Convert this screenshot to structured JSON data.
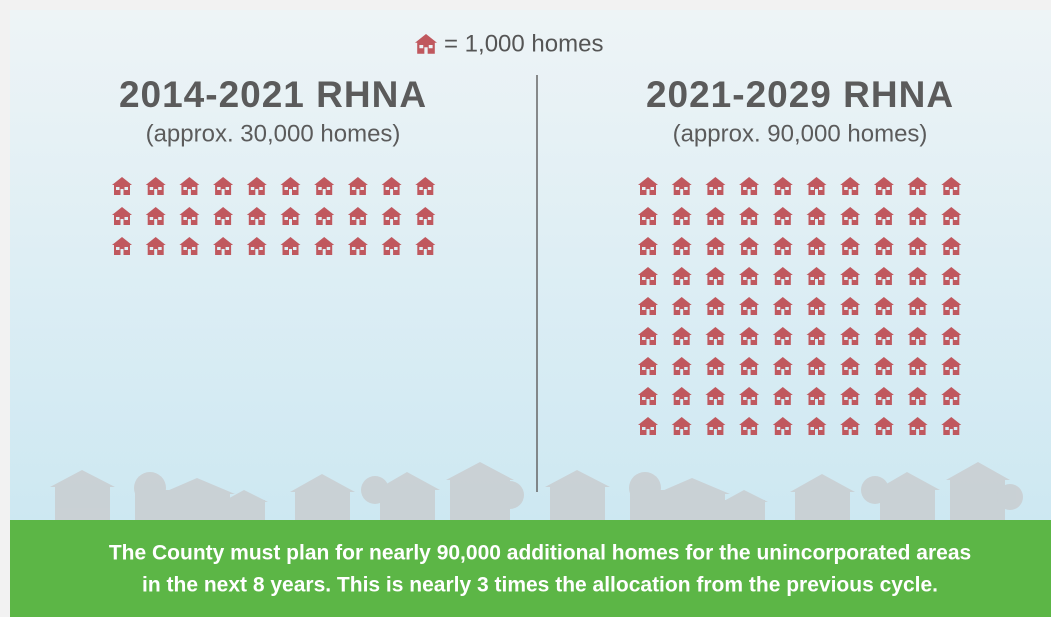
{
  "legend": {
    "label": "= 1,000 homes"
  },
  "icon_color": "#c0585e",
  "panels": [
    {
      "title": "2014-2021 RHNA",
      "subtitle": "(approx. 30,000 homes)",
      "icons": 30
    },
    {
      "title": "2021-2029 RHNA",
      "subtitle": "(approx. 90,000 homes)",
      "icons": 90
    }
  ],
  "footer": [
    "The County must plan for nearly 90,000 additional homes for the unincorporated areas",
    "in the next 8 years. This is nearly 3 times the allocation from the previous cycle."
  ]
}
